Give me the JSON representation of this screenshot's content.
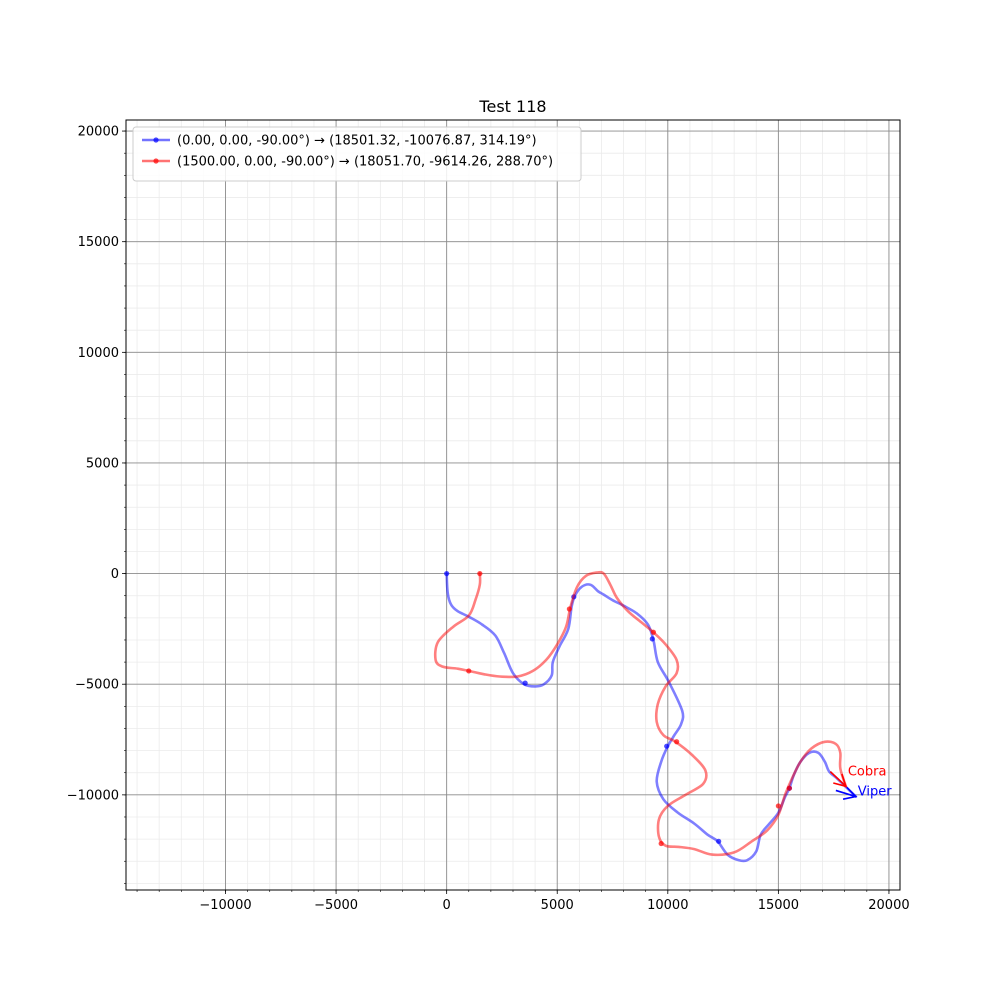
{
  "chart_data": {
    "type": "line",
    "title": "Test 118",
    "xlabel": "",
    "ylabel": "",
    "xlim": [
      -14500,
      20500
    ],
    "ylim": [
      -14300,
      20500
    ],
    "xticks": [
      -10000,
      -5000,
      0,
      5000,
      10000,
      15000,
      20000
    ],
    "xtick_labels": [
      "−10000",
      "−5000",
      "0",
      "5000",
      "10000",
      "15000",
      "20000"
    ],
    "yticks": [
      -10000,
      -5000,
      0,
      5000,
      10000,
      15000,
      20000
    ],
    "ytick_labels": [
      "−10000",
      "−5000",
      "0",
      "5000",
      "10000",
      "15000",
      "20000"
    ],
    "minor_step": 1000,
    "grid": true,
    "legend_position": "top-left",
    "series": [
      {
        "name": "(0.00, 0.00, -90.00°) → (18501.32, -10076.87, 314.19°)",
        "label": "Viper",
        "color": "#0000ff",
        "path": [
          [
            0,
            0
          ],
          [
            50,
            -900
          ],
          [
            200,
            -1400
          ],
          [
            500,
            -1700
          ],
          [
            1000,
            -1950
          ],
          [
            1600,
            -2300
          ],
          [
            2200,
            -2800
          ],
          [
            2600,
            -3600
          ],
          [
            3000,
            -4500
          ],
          [
            3500,
            -5000
          ],
          [
            4000,
            -5100
          ],
          [
            4400,
            -5000
          ],
          [
            4750,
            -4600
          ],
          [
            4800,
            -4000
          ],
          [
            5100,
            -3300
          ],
          [
            5500,
            -2500
          ],
          [
            5650,
            -1500
          ],
          [
            5800,
            -1000
          ],
          [
            6100,
            -600
          ],
          [
            6500,
            -500
          ],
          [
            6850,
            -800
          ],
          [
            7100,
            -950
          ],
          [
            7500,
            -1200
          ],
          [
            8000,
            -1450
          ],
          [
            8600,
            -1800
          ],
          [
            9100,
            -2300
          ],
          [
            9350,
            -3000
          ],
          [
            9550,
            -4000
          ],
          [
            10050,
            -4900
          ],
          [
            10650,
            -6200
          ],
          [
            10600,
            -6800
          ],
          [
            10300,
            -7300
          ],
          [
            10000,
            -7800
          ],
          [
            9700,
            -8500
          ],
          [
            9500,
            -9400
          ],
          [
            9800,
            -10200
          ],
          [
            10450,
            -10800
          ],
          [
            11200,
            -11300
          ],
          [
            11800,
            -11800
          ],
          [
            12250,
            -12100
          ],
          [
            12700,
            -12700
          ],
          [
            13200,
            -12950
          ],
          [
            13600,
            -12950
          ],
          [
            14000,
            -12550
          ],
          [
            14200,
            -11800
          ],
          [
            14600,
            -11300
          ],
          [
            15000,
            -10800
          ],
          [
            15300,
            -10100
          ],
          [
            15500,
            -9700
          ],
          [
            15700,
            -9100
          ],
          [
            16000,
            -8500
          ],
          [
            16400,
            -8100
          ],
          [
            16800,
            -8100
          ],
          [
            17100,
            -8500
          ],
          [
            17300,
            -8950
          ],
          [
            17700,
            -9300
          ],
          [
            18501.32,
            -10076.87
          ]
        ],
        "markers": [
          [
            0,
            0
          ],
          [
            5750,
            -1050
          ],
          [
            9300,
            -2950
          ],
          [
            9950,
            -7800
          ],
          [
            3550,
            -4950
          ],
          [
            12300,
            -12100
          ],
          [
            15500,
            -9700
          ]
        ],
        "arrow_from": [
          17600,
          -9800
        ],
        "arrow_to": [
          18501.32,
          -10076.87
        ]
      },
      {
        "name": "(1500.00, 0.00, -90.00°) → (18051.70, -9614.26, 288.70°)",
        "label": "Cobra",
        "color": "#ff0000",
        "path": [
          [
            1500,
            0
          ],
          [
            1500,
            -500
          ],
          [
            1300,
            -1200
          ],
          [
            1000,
            -1900
          ],
          [
            300,
            -2400
          ],
          [
            -400,
            -3100
          ],
          [
            -500,
            -3900
          ],
          [
            -200,
            -4200
          ],
          [
            500,
            -4300
          ],
          [
            1000,
            -4400
          ],
          [
            1700,
            -4550
          ],
          [
            2400,
            -4650
          ],
          [
            3200,
            -4650
          ],
          [
            3900,
            -4400
          ],
          [
            4500,
            -3900
          ],
          [
            5000,
            -3200
          ],
          [
            5400,
            -2400
          ],
          [
            5600,
            -1500
          ],
          [
            5900,
            -600
          ],
          [
            6300,
            -100
          ],
          [
            6800,
            50
          ],
          [
            7100,
            0
          ],
          [
            7400,
            -500
          ],
          [
            7700,
            -1100
          ],
          [
            8200,
            -1700
          ],
          [
            8800,
            -2200
          ],
          [
            9400,
            -2700
          ],
          [
            9900,
            -3200
          ],
          [
            10400,
            -3900
          ],
          [
            10400,
            -4500
          ],
          [
            9900,
            -5100
          ],
          [
            9550,
            -5900
          ],
          [
            9500,
            -6700
          ],
          [
            9800,
            -7300
          ],
          [
            10350,
            -7600
          ],
          [
            11100,
            -8200
          ],
          [
            11700,
            -8900
          ],
          [
            11600,
            -9500
          ],
          [
            10800,
            -10000
          ],
          [
            10000,
            -10500
          ],
          [
            9600,
            -11100
          ],
          [
            9600,
            -11900
          ],
          [
            9900,
            -12300
          ],
          [
            10500,
            -12350
          ],
          [
            11200,
            -12450
          ],
          [
            12000,
            -12700
          ],
          [
            13000,
            -12600
          ],
          [
            13800,
            -12100
          ],
          [
            14500,
            -11600
          ],
          [
            15000,
            -10900
          ],
          [
            15300,
            -10000
          ],
          [
            15600,
            -9300
          ],
          [
            16000,
            -8500
          ],
          [
            16500,
            -7900
          ],
          [
            17100,
            -7600
          ],
          [
            17600,
            -7700
          ],
          [
            17800,
            -8100
          ],
          [
            17800,
            -8800
          ],
          [
            18051.7,
            -9614.26
          ]
        ],
        "markers": [
          [
            1500,
            0
          ],
          [
            1000,
            -4400
          ],
          [
            5550,
            -1600
          ],
          [
            9350,
            -2650
          ],
          [
            10400,
            -7600
          ],
          [
            9700,
            -12200
          ],
          [
            15000,
            -10500
          ],
          [
            15500,
            -9700
          ]
        ],
        "arrow_from": [
          17350,
          -8950
        ],
        "arrow_to": [
          18051.7,
          -9614.26
        ]
      }
    ]
  }
}
